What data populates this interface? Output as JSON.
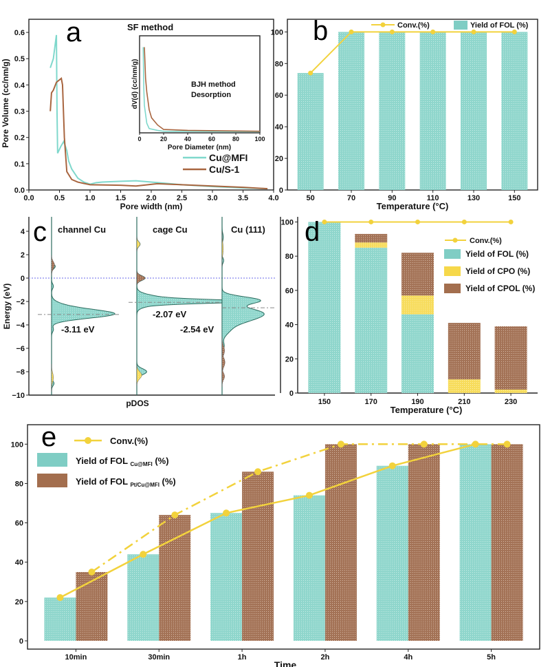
{
  "colors": {
    "teal": "#7fcdc4",
    "yellow": "#f6d84a",
    "brown": "#a36e4e",
    "conv_line": "#f2d23c",
    "fermi": "#9a9af0",
    "dos_line": "#2b6b5e"
  },
  "chart_data": [
    {
      "panel": "a",
      "type": "line",
      "annotation": "SF method",
      "xlabel": "Pore width (nm)",
      "ylabel": "Pore Volume (cc/nm/g)",
      "xlim": [
        0,
        4
      ],
      "ylim": [
        0,
        0.65
      ],
      "xticks": [
        "0.0",
        "0.5",
        "1.0",
        "1.5",
        "2.0",
        "2.5",
        "3.0",
        "3.5",
        "4.0"
      ],
      "yticks": [
        "0.0",
        "0.1",
        "0.2",
        "0.3",
        "0.4",
        "0.5",
        "0.6"
      ],
      "legend_placement": "right",
      "series": [
        {
          "name": "Cu@MFI",
          "color": "#7fd8cc",
          "points": [
            [
              0.35,
              0.465
            ],
            [
              0.4,
              0.5
            ],
            [
              0.45,
              0.59
            ],
            [
              0.46,
              0.3
            ],
            [
              0.47,
              0.14
            ],
            [
              0.52,
              0.165
            ],
            [
              0.57,
              0.185
            ],
            [
              0.62,
              0.15
            ],
            [
              0.65,
              0.11
            ],
            [
              0.7,
              0.08
            ],
            [
              0.8,
              0.045
            ],
            [
              0.9,
              0.03
            ],
            [
              1.0,
              0.022
            ],
            [
              1.1,
              0.028
            ],
            [
              1.2,
              0.03
            ],
            [
              1.5,
              0.033
            ],
            [
              1.75,
              0.035
            ],
            [
              2.0,
              0.03
            ],
            [
              2.5,
              0.02
            ],
            [
              3.0,
              0.013
            ],
            [
              3.5,
              0.008
            ],
            [
              3.9,
              0.005
            ]
          ]
        },
        {
          "name": "Cu/S-1",
          "color": "#a8653f",
          "points": [
            [
              0.35,
              0.3
            ],
            [
              0.37,
              0.37
            ],
            [
              0.4,
              0.38
            ],
            [
              0.45,
              0.41
            ],
            [
              0.53,
              0.425
            ],
            [
              0.55,
              0.4
            ],
            [
              0.58,
              0.2
            ],
            [
              0.62,
              0.07
            ],
            [
              0.7,
              0.04
            ],
            [
              0.8,
              0.03
            ],
            [
              0.9,
              0.025
            ],
            [
              1.0,
              0.02
            ],
            [
              1.5,
              0.018
            ],
            [
              1.75,
              0.015
            ],
            [
              2.1,
              0.024
            ],
            [
              2.5,
              0.02
            ],
            [
              3.0,
              0.015
            ],
            [
              3.5,
              0.01
            ],
            [
              3.9,
              0.005
            ]
          ]
        }
      ],
      "inset": {
        "annotation": [
          "BJH method",
          "Desorption"
        ],
        "xlabel": "Pore Diameter (nm)",
        "ylabel": "dV(d) (cc/nm/g)",
        "xlim": [
          0,
          100
        ],
        "xticks": [
          "0",
          "20",
          "40",
          "60",
          "80",
          "100"
        ],
        "series": [
          {
            "name": "Cu@MFI",
            "points": [
              [
                3,
                0.95
              ],
              [
                3.5,
                0.5
              ],
              [
                4,
                0.3
              ],
              [
                6,
                0.1
              ],
              [
                8,
                0.04
              ],
              [
                15,
                0.02
              ],
              [
                20,
                0.01
              ],
              [
                100,
                0.005
              ]
            ]
          },
          {
            "name": "Cu/S-1",
            "points": [
              [
                4,
                0.95
              ],
              [
                5,
                0.6
              ],
              [
                6,
                0.45
              ],
              [
                8,
                0.25
              ],
              [
                10,
                0.16
              ],
              [
                15,
                0.08
              ],
              [
                20,
                0.03
              ],
              [
                40,
                0.02
              ],
              [
                100,
                0.01
              ]
            ]
          }
        ]
      }
    },
    {
      "panel": "b",
      "type": "bar",
      "xlabel": "Temperature (°C)",
      "ylabel": "",
      "categories": [
        "50",
        "70",
        "90",
        "110",
        "130",
        "150"
      ],
      "ylim": [
        0,
        108
      ],
      "yticks": [
        "0",
        "20",
        "40",
        "60",
        "80",
        "100"
      ],
      "legend_placement": "top",
      "series": [
        {
          "name": "Yield of FOL (%)",
          "kind": "bar",
          "values": [
            74,
            100,
            100,
            100,
            100,
            100
          ]
        },
        {
          "name": "Conv.(%)",
          "kind": "line",
          "values": [
            74,
            100,
            100,
            100,
            100,
            100
          ]
        }
      ]
    },
    {
      "panel": "c",
      "type": "area",
      "xlabel": "pDOS",
      "ylabel": "Energy (eV)",
      "ylim": [
        -10,
        5
      ],
      "yticks": [
        "-10",
        "-8",
        "-6",
        "-4",
        "-2",
        "0",
        "2",
        "4"
      ],
      "fermi_level": 0,
      "subplots": [
        {
          "title": "channel Cu",
          "d_band_center": -3.11,
          "label": "-3.11 eV",
          "peaks": [
            [
              -3.1,
              0.9,
              0.35
            ],
            [
              -2.6,
              0.25,
              0.4
            ],
            [
              1.0,
              0.06,
              0.2
            ],
            [
              -0.7,
              0.03,
              0.2
            ],
            [
              -4.4,
              0.03,
              0.2
            ],
            [
              -9,
              0.04,
              0.2
            ]
          ],
          "minor": [
            [
              1.1,
              0.05,
              0.3,
              "brown"
            ],
            [
              -8.5,
              0.03,
              0.4,
              "yellow"
            ]
          ]
        },
        {
          "title": "cage Cu",
          "d_band_center": -2.07,
          "label": "-2.07 eV",
          "peaks": [
            [
              -2.0,
              1.0,
              0.15
            ],
            [
              -1.9,
              0.4,
              0.35
            ],
            [
              0.0,
              0.1,
              0.2
            ],
            [
              -8.0,
              0.12,
              0.25
            ],
            [
              2.9,
              0.04,
              0.2
            ]
          ],
          "minor": [
            [
              0.0,
              0.1,
              0.2,
              "brown"
            ],
            [
              2.9,
              0.04,
              0.2,
              "yellow"
            ],
            [
              -8.3,
              0.06,
              0.3,
              "yellow"
            ]
          ]
        },
        {
          "title": "Cu (111)",
          "d_band_center": -2.54,
          "label": "-2.54 eV",
          "peaks": [
            [
              -1.9,
              0.9,
              0.3
            ],
            [
              -2.9,
              0.8,
              0.4
            ],
            [
              -3.5,
              0.5,
              0.4
            ],
            [
              -4.3,
              0.2,
              0.5
            ],
            [
              -5.8,
              0.05,
              0.3
            ],
            [
              -7.3,
              0.05,
              0.3
            ],
            [
              1.5,
              0.04,
              0.2
            ],
            [
              3.5,
              0.03,
              0.3
            ]
          ],
          "minor": [
            [
              -6.2,
              0.06,
              0.4,
              "brown"
            ],
            [
              -7.2,
              0.07,
              0.4,
              "brown"
            ],
            [
              -8.4,
              0.06,
              0.3,
              "brown"
            ],
            [
              2.5,
              0.03,
              0.5,
              "yellow"
            ]
          ]
        }
      ]
    },
    {
      "panel": "d",
      "type": "bar",
      "stacked": true,
      "xlabel": "Temperature (°C)",
      "ylabel": "",
      "categories": [
        "150",
        "170",
        "190",
        "210",
        "230"
      ],
      "ylim": [
        0,
        103
      ],
      "yticks": [
        "0",
        "20",
        "40",
        "60",
        "80",
        "100"
      ],
      "legend_placement": "top-right",
      "series": [
        {
          "name": "Conv.(%)",
          "kind": "line",
          "values": [
            100,
            100,
            100,
            100,
            100
          ]
        },
        {
          "name": "Yield of FOL (%)",
          "kind": "bar",
          "values": [
            100,
            85,
            46,
            0,
            0
          ]
        },
        {
          "name": "Yield of CPO (%)",
          "kind": "bar",
          "values": [
            0,
            3,
            11,
            8,
            2
          ]
        },
        {
          "name": "Yield of CPOL (%)",
          "kind": "bar",
          "values": [
            0,
            5,
            25,
            33,
            37
          ]
        }
      ]
    },
    {
      "panel": "e",
      "type": "bar",
      "xlabel": "Time",
      "ylabel": "",
      "categories": [
        "10min",
        "30min",
        "1h",
        "2h",
        "4h",
        "5h"
      ],
      "ylim": [
        0,
        105
      ],
      "yticks": [
        "0",
        "20",
        "40",
        "60",
        "80",
        "100"
      ],
      "legend_placement": "top-left",
      "legend": [
        {
          "text": "Conv.(%)",
          "sub": "",
          "suffix": ""
        },
        {
          "text": "Yield of FOL ",
          "sub": "Cu@MFI",
          "suffix": " (%)"
        },
        {
          "text": "Yield of FOL ",
          "sub": "Pt/Cu@MFI",
          "suffix": " (%)"
        }
      ],
      "series": [
        {
          "name": "Yield of FOL Cu@MFI (%)",
          "kind": "bar",
          "values": [
            22,
            44,
            65,
            74,
            89,
            100
          ]
        },
        {
          "name": "Yield of FOL Pt/Cu@MFI (%)",
          "kind": "bar",
          "values": [
            35,
            64,
            86,
            100,
            100,
            100
          ]
        },
        {
          "name": "Conv.(%) Cu@MFI",
          "kind": "line",
          "style": "solid",
          "values": [
            22,
            44,
            65,
            74,
            89,
            100
          ]
        },
        {
          "name": "Conv.(%) Pt/Cu@MFI",
          "kind": "line",
          "style": "dash-dot",
          "values": [
            35,
            64,
            86,
            100,
            100,
            100
          ]
        }
      ]
    }
  ]
}
